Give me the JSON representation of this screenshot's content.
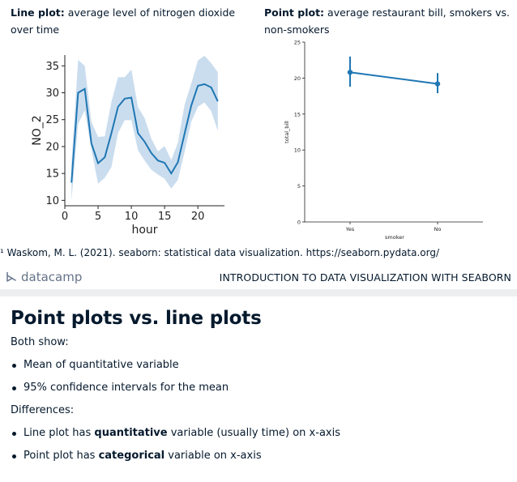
{
  "captions": {
    "left": {
      "bold": "Line plot:",
      "text": " average level of nitrogen dioxide over time"
    },
    "right": {
      "bold": "Point plot:",
      "text": " average restaurant bill, smokers vs. non-smokers"
    }
  },
  "chart_data": [
    {
      "type": "line",
      "xlabel": "hour",
      "ylabel": "NO_2",
      "xlim": [
        0,
        24
      ],
      "ylim": [
        9,
        37
      ],
      "xticks": [
        0,
        5,
        10,
        15,
        20
      ],
      "yticks": [
        10,
        15,
        20,
        25,
        30,
        35
      ],
      "line_color": "#1f77b4",
      "band_color": "#c4d9ec",
      "series": [
        {
          "x": [
            1,
            2,
            3,
            4,
            5,
            6,
            7,
            8,
            9,
            10,
            11,
            12,
            13,
            14,
            15,
            16,
            17,
            18,
            19,
            20,
            21,
            22,
            23
          ],
          "values": [
            13.3,
            30.0,
            30.7,
            20.6,
            16.9,
            18.0,
            22.5,
            27.4,
            28.9,
            29.1,
            22.5,
            20.9,
            18.8,
            17.4,
            17.0,
            15.0,
            17.1,
            22.4,
            27.6,
            31.3,
            31.6,
            31.0,
            28.4
          ],
          "ci_low": [
            10.0,
            24.2,
            26.7,
            19.4,
            13.1,
            14.2,
            16.2,
            22.5,
            24.9,
            24.9,
            19.3,
            17.4,
            15.7,
            14.8,
            14.0,
            12.2,
            13.8,
            19.0,
            24.6,
            27.4,
            28.2,
            26.6,
            22.9
          ],
          "ci_high": [
            16.9,
            36.1,
            35.0,
            24.6,
            21.8,
            21.9,
            28.3,
            32.9,
            32.9,
            34.3,
            27.3,
            25.3,
            21.5,
            19.1,
            20.1,
            17.5,
            20.7,
            27.8,
            31.7,
            36.0,
            36.9,
            35.5,
            33.8
          ]
        }
      ]
    },
    {
      "type": "point",
      "xlabel": "smoker",
      "ylabel": "total_bill",
      "categories": [
        "Yes",
        "No"
      ],
      "ylim": [
        0,
        25
      ],
      "yticks": [
        0,
        5,
        10,
        15,
        20,
        25
      ],
      "line_color": "#1f77b4",
      "series": [
        {
          "values": [
            20.8,
            19.2
          ],
          "ci_low": [
            18.8,
            17.9
          ],
          "ci_high": [
            23.0,
            20.7
          ]
        }
      ]
    }
  ],
  "footnote": "¹ Waskom, M. L. (2021). seaborn: statistical data visualization. https://seaborn.pydata.org/",
  "brand": {
    "logo_text": "datacamp",
    "course_title": "INTRODUCTION TO DATA VISUALIZATION WITH SEABORN"
  },
  "slide": {
    "title": "Point plots vs. line plots",
    "both_show_label": "Both show:",
    "both_items": [
      "Mean of quantitative variable",
      "95% confidence intervals for the mean"
    ],
    "differences_label": "Differences:",
    "diff_items": [
      {
        "pre": "Line plot has ",
        "bold": "quantitative",
        "post": " variable (usually time) on x-axis"
      },
      {
        "pre": "Point plot has ",
        "bold": "categorical",
        "post": " variable on x-axis"
      }
    ]
  }
}
